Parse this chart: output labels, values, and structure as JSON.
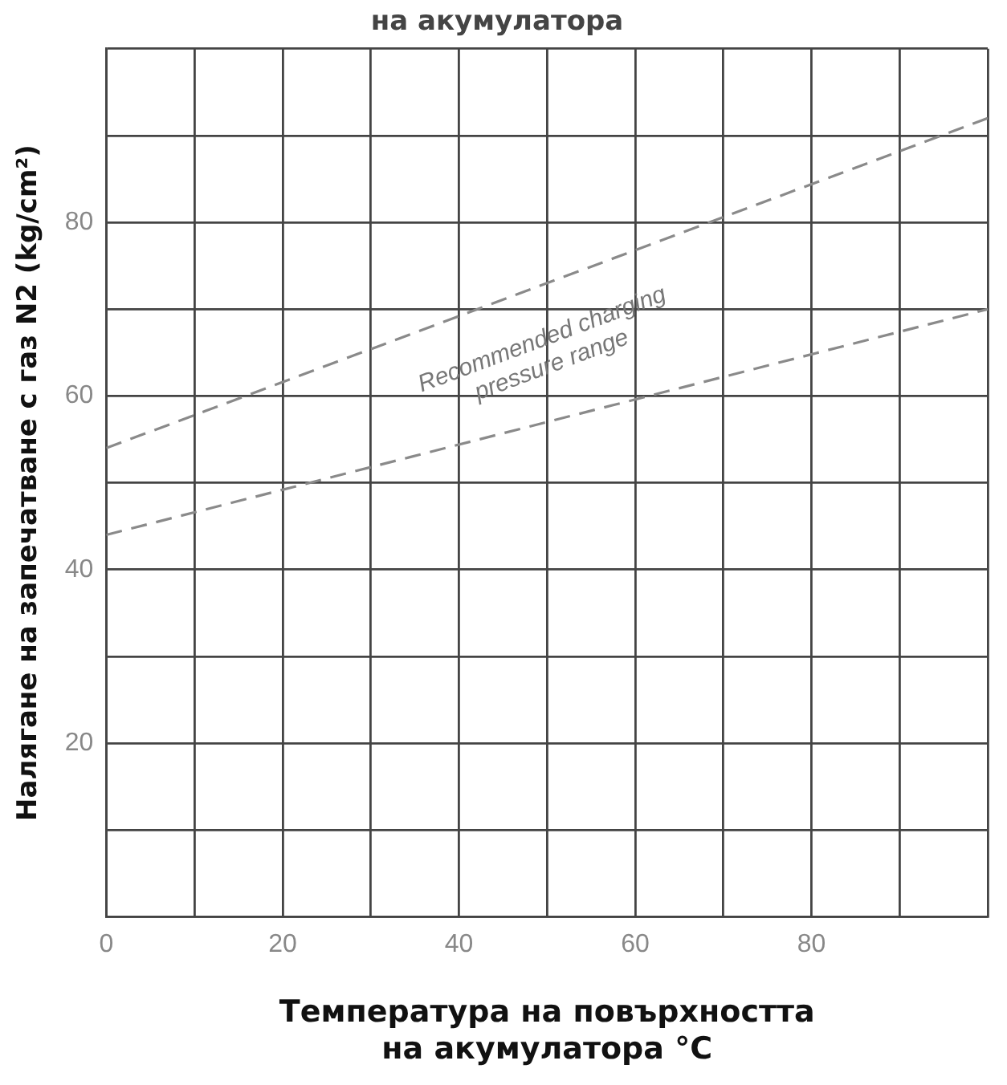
{
  "chart_data": {
    "type": "line",
    "title": "на акумулатора",
    "xlabel": "Температура на повърхността\nна акумулатора °C",
    "ylabel": "Налягане на запечатване с газ N2 (kg/cm²)",
    "x": [
      0,
      100
    ],
    "xlim": [
      0,
      100
    ],
    "ylim": [
      0,
      100
    ],
    "xticks": [
      0,
      {
        "value": 10,
        "label": null
      },
      20,
      {
        "value": 30,
        "label": null
      },
      40,
      {
        "value": 50,
        "label": null
      },
      60,
      {
        "value": 70,
        "label": null
      },
      80,
      {
        "value": 90,
        "label": null
      },
      {
        "value": 100,
        "label": null
      }
    ],
    "yticks": [
      {
        "value": 0,
        "label": null
      },
      {
        "value": 10,
        "label": null
      },
      20,
      {
        "value": 30,
        "label": null
      },
      40,
      {
        "value": 50,
        "label": null
      },
      60,
      {
        "value": 70,
        "label": null
      },
      80,
      {
        "value": 90,
        "label": null
      },
      {
        "value": 100,
        "label": null
      }
    ],
    "grid": true,
    "marker": "none",
    "line_style": "dashed",
    "legend": false,
    "series": [
      {
        "color": "#8a8a8a",
        "values": [
          54,
          92
        ]
      },
      {
        "color": "#8a8a8a",
        "values": [
          44,
          70
        ]
      }
    ],
    "annotations": [
      "Recommended charging pressure range"
    ]
  }
}
